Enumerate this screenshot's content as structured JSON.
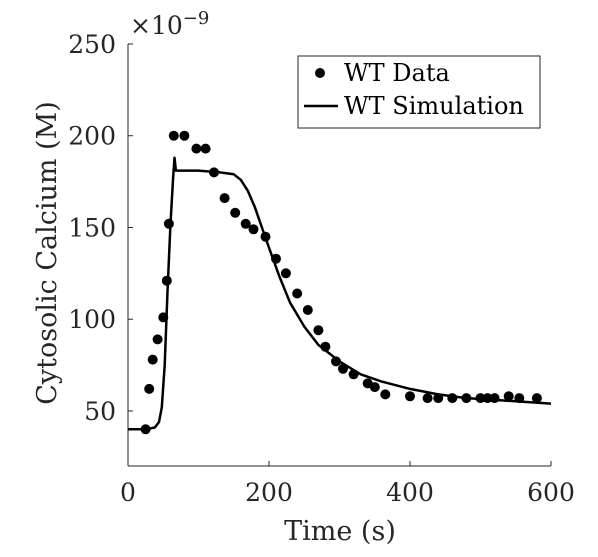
{
  "chart_data": {
    "type": "scatter",
    "xlabel": "Time (s)",
    "ylabel": "Cytosolic Calcium (M)",
    "xlim": [
      0,
      600
    ],
    "ylim": [
      20,
      250
    ],
    "x_ticks": [
      "0",
      "200",
      "400",
      "600"
    ],
    "y_ticks": [
      "50",
      "100",
      "150",
      "200",
      "250"
    ],
    "y_scale_base": "×10",
    "y_scale_exponent": "−9",
    "grid": false,
    "legend_placement": "top-right",
    "series": [
      {
        "name": "WT Data",
        "kind": "markers",
        "color": "#000000",
        "x": [
          25,
          30,
          35,
          42,
          50,
          55,
          58,
          65,
          80,
          97,
          110,
          122,
          137,
          152,
          167,
          178,
          195,
          210,
          224,
          240,
          255,
          270,
          280,
          295,
          305,
          320,
          340,
          350,
          365,
          400,
          425,
          440,
          460,
          480,
          500,
          510,
          520,
          540,
          555,
          580
        ],
        "y": [
          40,
          62,
          78,
          89,
          101,
          121,
          152,
          200,
          200,
          193,
          193,
          180,
          166,
          158,
          152,
          149,
          145,
          133,
          125,
          114,
          105,
          94,
          85,
          77,
          73,
          70,
          65,
          63,
          59,
          58,
          57,
          57,
          57,
          57,
          57,
          57,
          57,
          58,
          57,
          57
        ]
      },
      {
        "name": "WT Simulation",
        "kind": "line",
        "color": "#000000",
        "x": [
          0,
          25,
          38,
          44,
          48,
          52,
          56,
          60,
          64,
          66,
          68,
          70,
          80,
          100,
          130,
          150,
          160,
          170,
          180,
          190,
          200,
          215,
          230,
          250,
          270,
          300,
          330,
          360,
          400,
          440,
          480,
          520,
          560,
          600
        ],
        "y": [
          40,
          40,
          41,
          44,
          52,
          75,
          115,
          150,
          177,
          188,
          181,
          181,
          181,
          181,
          180,
          179,
          176,
          170,
          161,
          150,
          139,
          123,
          109,
          96,
          86,
          77,
          70,
          66,
          62,
          59,
          57,
          56,
          55,
          54
        ]
      }
    ]
  }
}
